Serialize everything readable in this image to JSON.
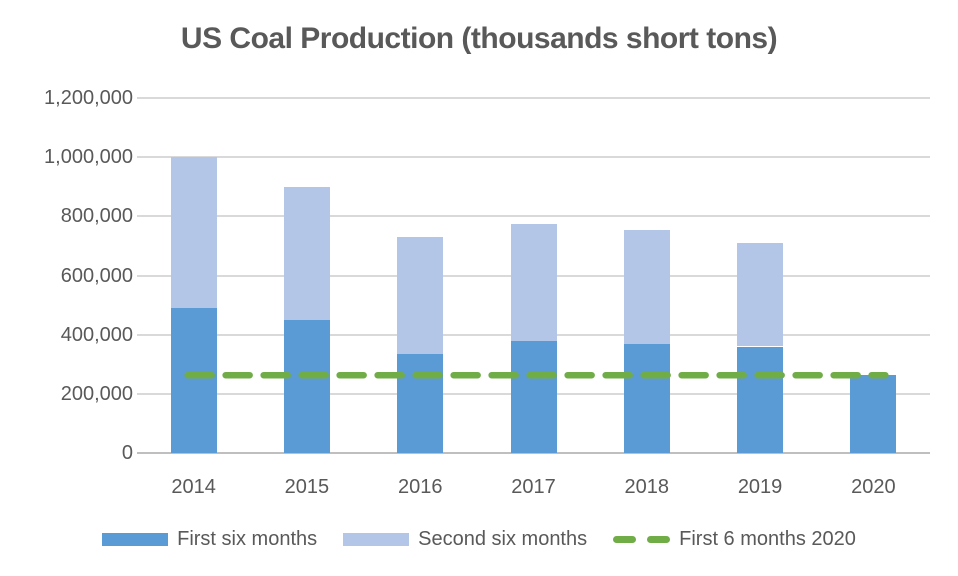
{
  "chart_data": {
    "type": "bar",
    "subtype": "stacked-column",
    "title": "US Coal Production (thousands short tons)",
    "categories": [
      "2014",
      "2015",
      "2016",
      "2017",
      "2018",
      "2019",
      "2020"
    ],
    "series": [
      {
        "name": "First six months",
        "color": "#5b9bd5",
        "values": [
          490000,
          450000,
          335000,
          380000,
          370000,
          360000,
          263000
        ]
      },
      {
        "name": "Second six months",
        "color": "#b3c6e7",
        "values": [
          510000,
          450000,
          395000,
          395000,
          385000,
          350000,
          0
        ]
      }
    ],
    "reference_line": {
      "name": "First 6 months 2020",
      "value": 263000,
      "color": "#70ad47",
      "style": "dashed"
    },
    "ylim": [
      0,
      1200000
    ],
    "ytick_step": 200000,
    "ytick_labels": [
      "0",
      "200,000",
      "400,000",
      "600,000",
      "800,000",
      "1,000,000",
      "1,200,000"
    ],
    "xlabel": "",
    "ylabel": "",
    "grid": true,
    "legend_position": "bottom",
    "legend": [
      {
        "label": "First six months",
        "marker": "swatch",
        "color": "#5b9bd5"
      },
      {
        "label": "Second six months",
        "marker": "swatch",
        "color": "#b3c6e7"
      },
      {
        "label": "First 6 months 2020",
        "marker": "dashes",
        "color": "#70ad47"
      }
    ],
    "colors": {
      "title_text": "#595959",
      "axis_text": "#595959",
      "gridline": "#d9d9d9",
      "axis_line": "#bfbfbf",
      "background": "#ffffff"
    }
  }
}
